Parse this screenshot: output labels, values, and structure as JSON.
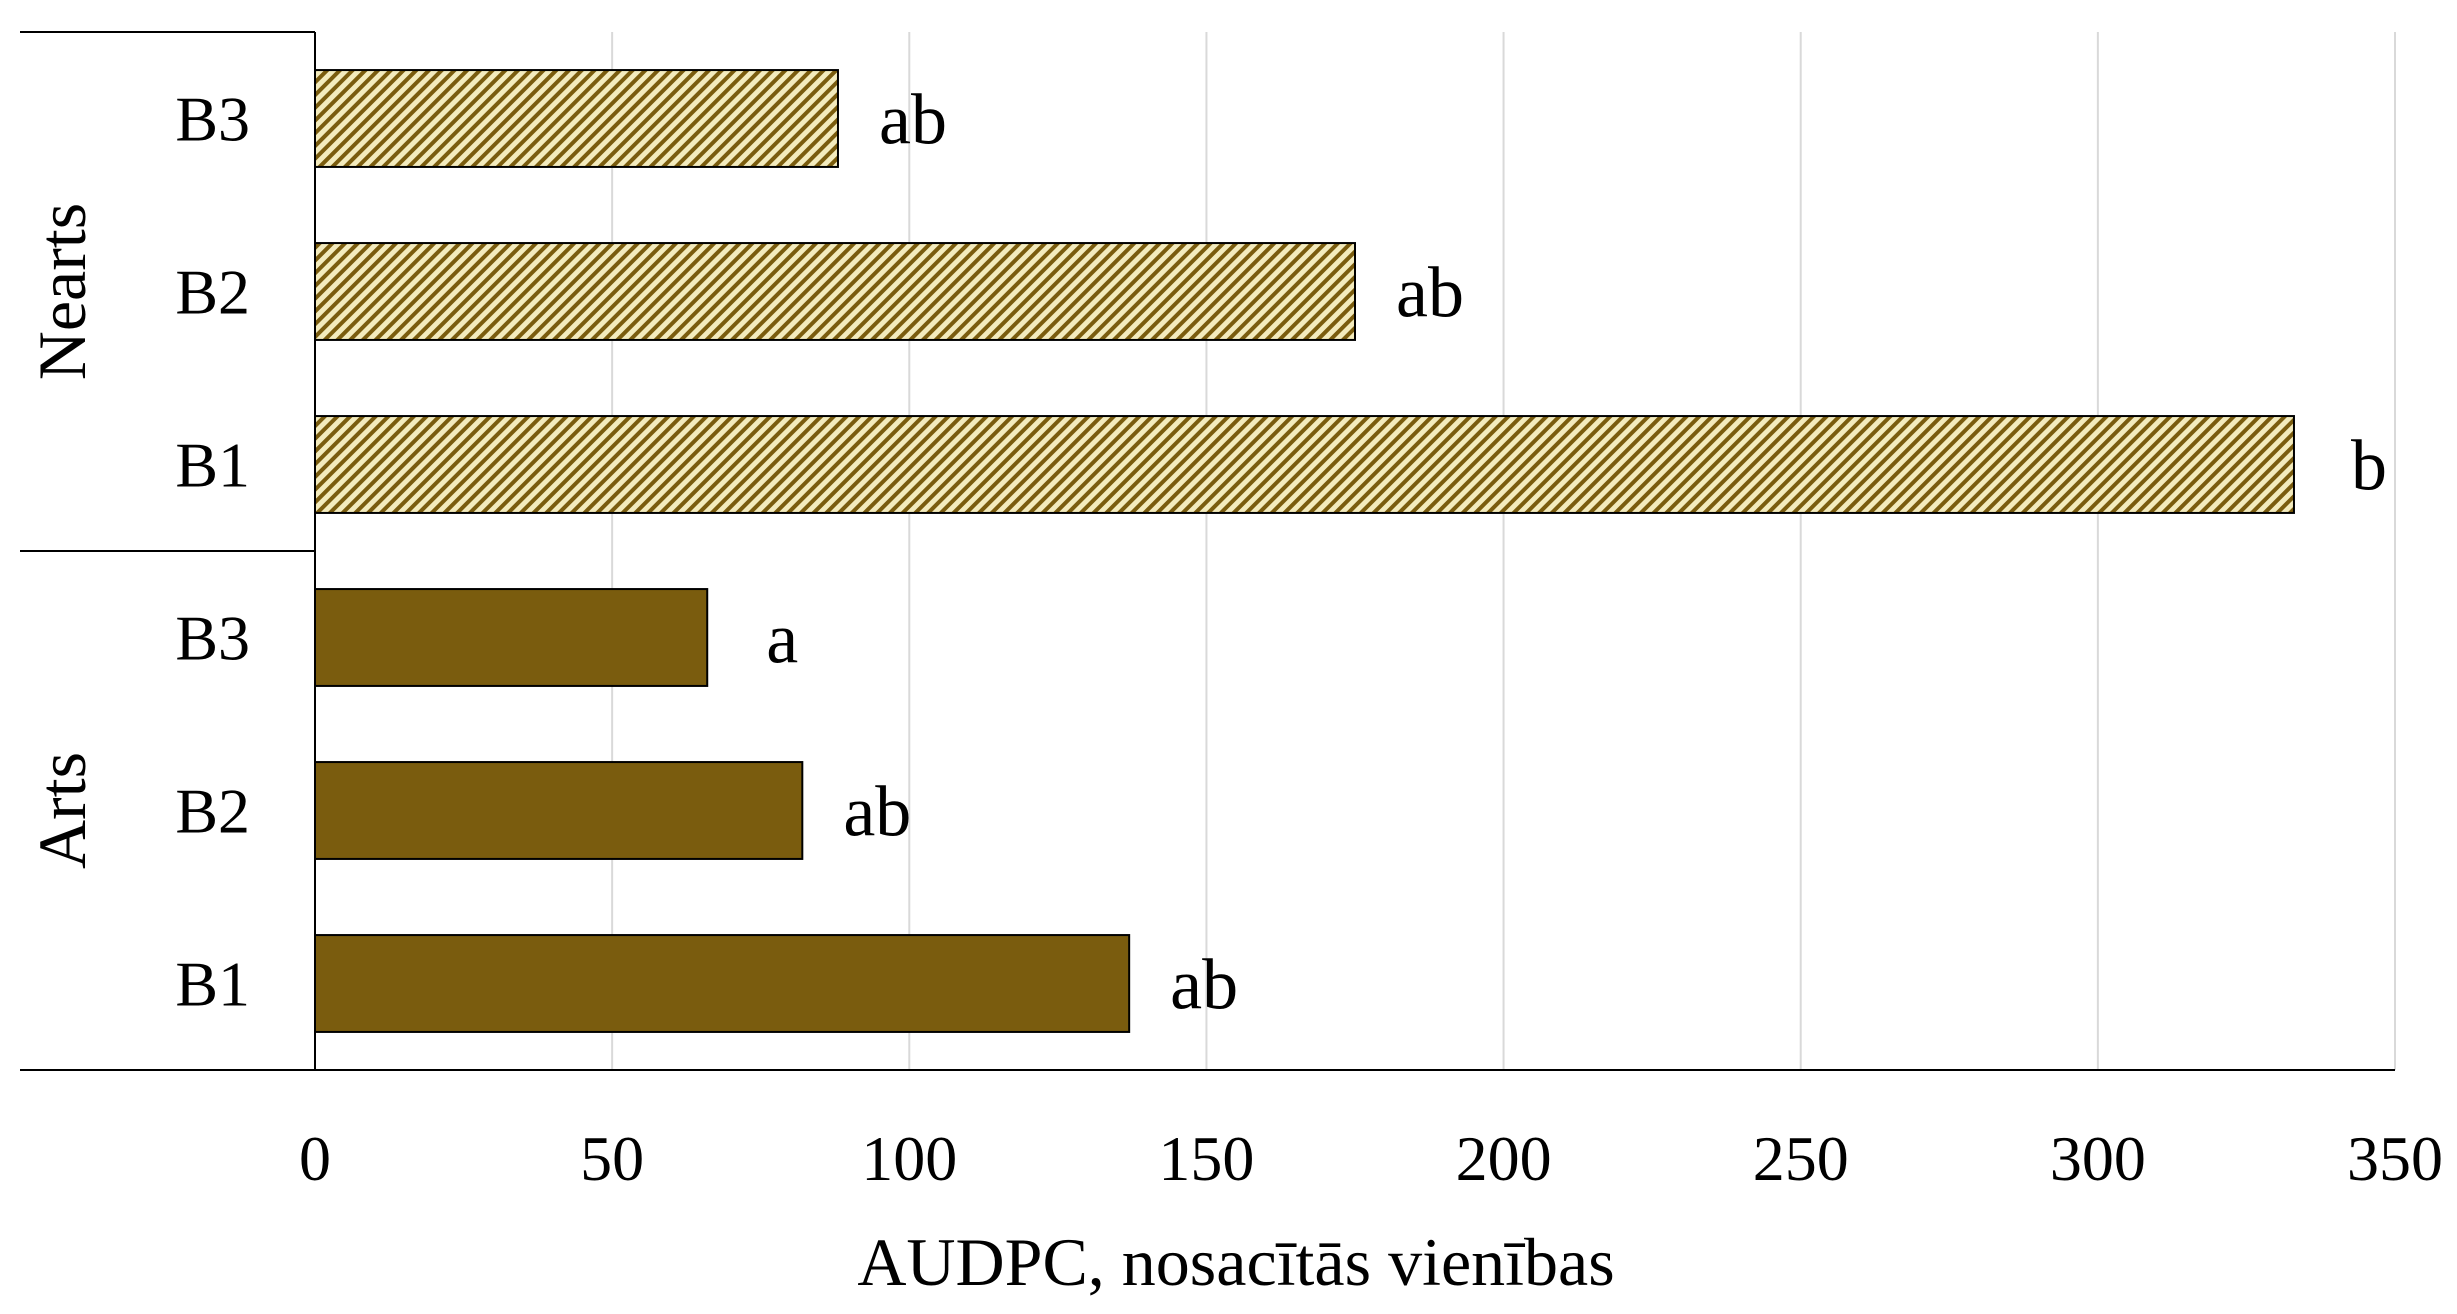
{
  "chart_data": {
    "type": "bar",
    "orientation": "horizontal",
    "xlabel": "AUDPC, nosacītās vienības",
    "xlim": [
      0,
      350
    ],
    "xticks": [
      0,
      50,
      100,
      150,
      200,
      250,
      300,
      350
    ],
    "grid": true,
    "groups": [
      {
        "name": "Nearts",
        "pattern": "diagonal-hatch",
        "color": "#7a5c0e",
        "fill_bg": "#f3ebbd",
        "bars": [
          {
            "category": "B3",
            "value": 88,
            "label": "ab"
          },
          {
            "category": "B2",
            "value": 175,
            "label": "ab"
          },
          {
            "category": "B1",
            "value": 333,
            "label": "b"
          }
        ]
      },
      {
        "name": "Arts",
        "pattern": "solid",
        "color": "#7a5c0e",
        "bars": [
          {
            "category": "B3",
            "value": 66,
            "label": "a"
          },
          {
            "category": "B2",
            "value": 82,
            "label": "ab"
          },
          {
            "category": "B1",
            "value": 137,
            "label": "ab"
          }
        ]
      }
    ]
  }
}
